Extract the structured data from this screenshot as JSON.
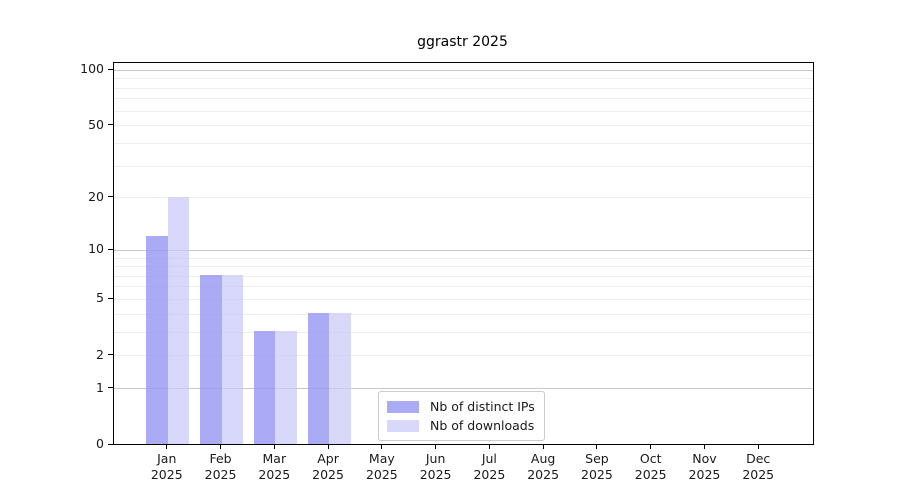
{
  "chart_data": {
    "type": "bar",
    "title": "ggrastr 2025",
    "categories": [
      "Jan",
      "Feb",
      "Mar",
      "Apr",
      "May",
      "Jun",
      "Jul",
      "Aug",
      "Sep",
      "Oct",
      "Nov",
      "Dec"
    ],
    "x_year_label": "2025",
    "series": [
      {
        "name": "Nb of distinct IPs",
        "color": "rgba(150,150,243,0.8)",
        "values": [
          12,
          7,
          3,
          4,
          0,
          0,
          0,
          0,
          0,
          0,
          0,
          0
        ]
      },
      {
        "name": "Nb of downloads",
        "color": "rgba(200,200,248,0.7)",
        "values": [
          20,
          7,
          3,
          4,
          0,
          0,
          0,
          0,
          0,
          0,
          0,
          0
        ]
      }
    ],
    "yaxis": {
      "scale": "log10(1+y)",
      "tick_values": [
        0,
        1,
        2,
        5,
        10,
        20,
        50,
        100
      ],
      "major_gridlines": [
        1,
        10,
        100
      ],
      "minor_gridlines": [
        2,
        3,
        4,
        5,
        6,
        7,
        8,
        9,
        20,
        30,
        40,
        50,
        60,
        70,
        80,
        90
      ],
      "ylim_top": 100
    },
    "legend": {
      "position": "lower-center",
      "entries": [
        "Nb of distinct IPs",
        "Nb of downloads"
      ]
    }
  },
  "colors": {
    "major_grid": "#c8c8c8",
    "minor_grid": "#ededed",
    "axis": "#000000",
    "text": "#1a1a1a"
  }
}
